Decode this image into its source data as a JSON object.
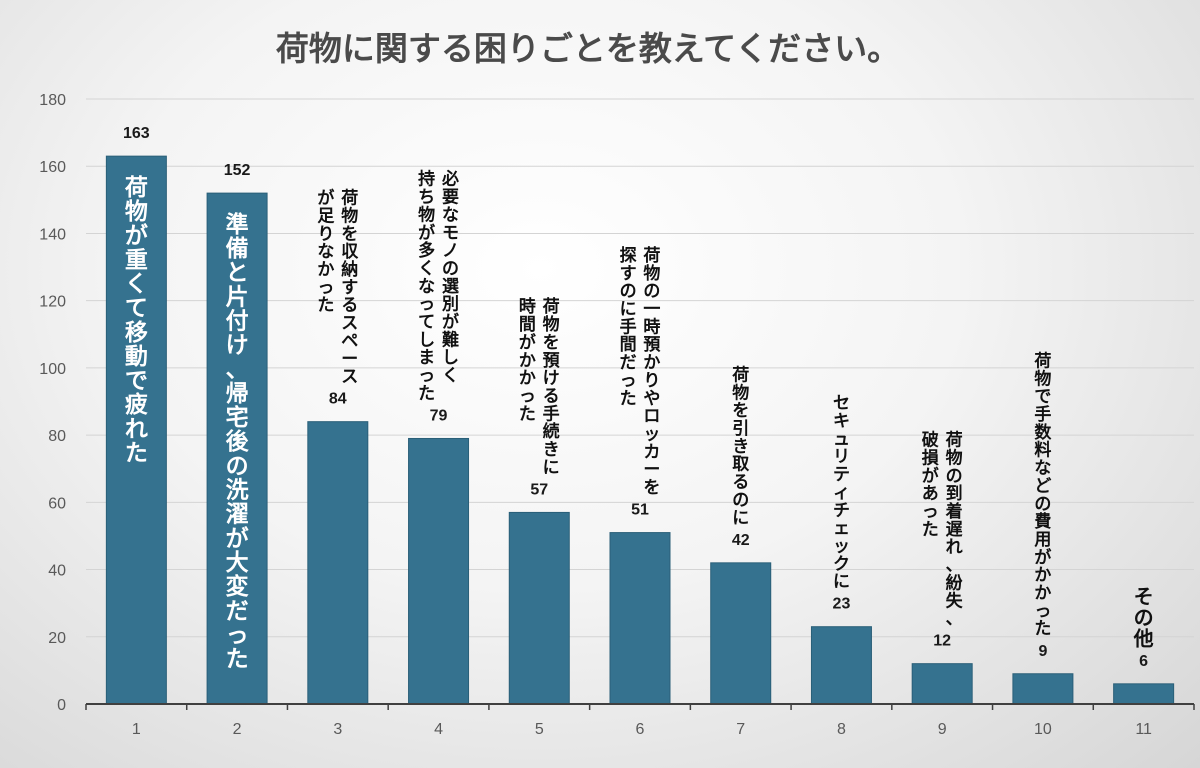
{
  "colors": {
    "bar": "#35728f",
    "bar_stroke": "#2a5f78",
    "grid": "#d4d4d4",
    "axis": "#404040"
  },
  "chart_data": {
    "type": "bar",
    "title": "荷物に関する困りごとを教えてください。",
    "categories": [
      "1",
      "2",
      "3",
      "4",
      "5",
      "6",
      "7",
      "8",
      "9",
      "10",
      "11"
    ],
    "values": [
      163,
      152,
      84,
      79,
      57,
      51,
      42,
      23,
      12,
      9,
      6
    ],
    "ylim": [
      0,
      180
    ],
    "yticks": [
      0,
      20,
      40,
      60,
      80,
      100,
      120,
      140,
      160,
      180
    ],
    "grid": true,
    "annotations": [
      {
        "lines": [
          "荷物が重くて移動で疲れた"
        ],
        "placement": "inside"
      },
      {
        "lines": [
          "準備と片付け、帰宅後の洗濯が大変だった"
        ],
        "placement": "inside"
      },
      {
        "lines": [
          "荷物を収納するスペース",
          "が足りなかった"
        ],
        "placement": "above"
      },
      {
        "lines": [
          "必要なモノの選別が難しく",
          "持ち物が多くなってしまった"
        ],
        "placement": "above"
      },
      {
        "lines": [
          "荷物を預ける手続きに",
          "時間がかかった"
        ],
        "placement": "above"
      },
      {
        "lines": [
          "荷物の一時預かりやロッカーを",
          "探すのに手間だった"
        ],
        "placement": "above"
      },
      {
        "lines": [
          "荷物を引き取るのに"
        ],
        "placement": "above"
      },
      {
        "lines": [
          "セキュリティチェックに"
        ],
        "placement": "above"
      },
      {
        "lines": [
          "荷物の到着遅れ、紛失、",
          "破損があった"
        ],
        "placement": "above"
      },
      {
        "lines": [
          "荷物で手数料などの費用がかかった"
        ],
        "placement": "above"
      },
      {
        "lines": [
          "その他"
        ],
        "placement": "above"
      }
    ]
  }
}
